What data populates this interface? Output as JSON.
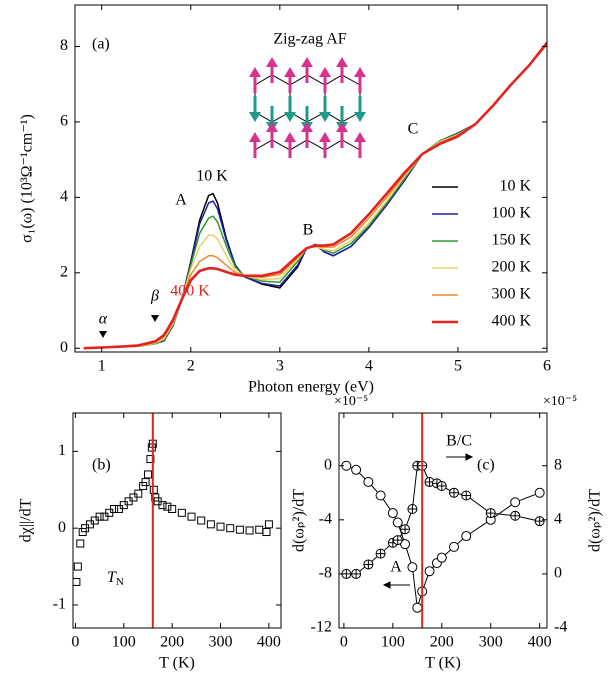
{
  "chart_data": [
    {
      "type": "line",
      "panel_label": "(a)",
      "xlabel": "Photon energy (eV)",
      "ylabel": "σ₁(ω) (10³Ω⁻¹cm⁻¹)",
      "x": [
        0.8,
        1.0,
        1.2,
        1.4,
        1.6,
        1.7,
        1.8,
        1.9,
        2.0,
        2.1,
        2.2,
        2.25,
        2.3,
        2.4,
        2.5,
        2.6,
        2.8,
        3.0,
        3.2,
        3.3,
        3.4,
        3.5,
        3.6,
        3.8,
        4.0,
        4.2,
        4.4,
        4.6,
        4.8,
        5.0,
        5.2,
        5.4,
        5.6,
        5.8,
        6.0
      ],
      "series": [
        {
          "name": "10 K",
          "color": "#000000",
          "values": [
            0,
            0.02,
            0.04,
            0.05,
            0.12,
            0.2,
            0.6,
            1.3,
            2.3,
            3.4,
            4.05,
            4.1,
            3.85,
            2.9,
            2.2,
            1.9,
            1.7,
            1.6,
            2.15,
            2.65,
            2.75,
            2.55,
            2.45,
            2.7,
            3.2,
            3.8,
            4.45,
            5.15,
            5.5,
            5.7,
            5.95,
            6.45,
            7.0,
            7.5,
            8.05
          ]
        },
        {
          "name": "100 K",
          "color": "#1f1fa8",
          "values": [
            0,
            0.02,
            0.04,
            0.05,
            0.12,
            0.2,
            0.6,
            1.3,
            2.25,
            3.3,
            3.85,
            3.9,
            3.7,
            2.85,
            2.2,
            1.9,
            1.72,
            1.65,
            2.2,
            2.65,
            2.75,
            2.55,
            2.45,
            2.7,
            3.2,
            3.8,
            4.45,
            5.15,
            5.5,
            5.7,
            5.95,
            6.45,
            7.0,
            7.5,
            8.05
          ]
        },
        {
          "name": "150 K",
          "color": "#2e9a2e",
          "values": [
            0,
            0.02,
            0.04,
            0.05,
            0.12,
            0.22,
            0.62,
            1.3,
            2.2,
            3.05,
            3.45,
            3.5,
            3.35,
            2.7,
            2.15,
            1.92,
            1.78,
            1.75,
            2.3,
            2.65,
            2.72,
            2.6,
            2.52,
            2.78,
            3.25,
            3.85,
            4.5,
            5.15,
            5.5,
            5.68,
            5.95,
            6.45,
            7.0,
            7.5,
            8.05
          ]
        },
        {
          "name": "200 K",
          "color": "#e6cf6e",
          "values": [
            0,
            0.02,
            0.04,
            0.05,
            0.13,
            0.25,
            0.65,
            1.3,
            2.1,
            2.7,
            3.0,
            3.0,
            2.9,
            2.45,
            2.05,
            1.92,
            1.82,
            1.85,
            2.35,
            2.65,
            2.7,
            2.62,
            2.58,
            2.85,
            3.32,
            3.9,
            4.55,
            5.15,
            5.48,
            5.66,
            5.95,
            6.45,
            7.0,
            7.5,
            8.05
          ]
        },
        {
          "name": "300 K",
          "color": "#f0882a",
          "values": [
            0,
            0.02,
            0.04,
            0.06,
            0.15,
            0.3,
            0.7,
            1.3,
            1.95,
            2.3,
            2.45,
            2.45,
            2.4,
            2.2,
            2.0,
            1.92,
            1.88,
            1.95,
            2.4,
            2.65,
            2.7,
            2.68,
            2.68,
            2.95,
            3.45,
            4.0,
            4.6,
            5.15,
            5.45,
            5.64,
            5.95,
            6.45,
            7.0,
            7.5,
            8.05
          ]
        },
        {
          "name": "400 K",
          "color": "#e3231e",
          "values": [
            0,
            0.02,
            0.04,
            0.07,
            0.18,
            0.35,
            0.75,
            1.3,
            1.8,
            2.05,
            2.12,
            2.12,
            2.1,
            2.02,
            1.95,
            1.92,
            1.92,
            2.02,
            2.45,
            2.65,
            2.72,
            2.72,
            2.75,
            3.05,
            3.55,
            4.1,
            4.65,
            5.15,
            5.42,
            5.62,
            5.95,
            6.45,
            7.0,
            7.5,
            8.1
          ]
        }
      ],
      "xlim": [
        0.7,
        6
      ],
      "xticks": [
        1,
        2,
        3,
        4,
        5,
        6
      ],
      "ylim": [
        -0.1,
        9.1
      ],
      "yticks": [
        0,
        2,
        4,
        6,
        8
      ],
      "annotations": [
        "Zig-zag AF",
        "10 K",
        "A",
        "B",
        "C",
        "400 K",
        "α",
        "β"
      ]
    },
    {
      "type": "scatter",
      "panel_label": "(b)",
      "xlabel": "T (K)",
      "ylabel": "dχ||/dT",
      "x": [
        2,
        5,
        10,
        15,
        20,
        30,
        40,
        50,
        60,
        70,
        80,
        90,
        100,
        110,
        120,
        130,
        140,
        145,
        150,
        155,
        158,
        160,
        162,
        165,
        170,
        180,
        190,
        200,
        220,
        240,
        260,
        280,
        300,
        320,
        340,
        360,
        380,
        395,
        400
      ],
      "values": [
        -0.7,
        -0.5,
        -0.2,
        -0.05,
        0.0,
        0.05,
        0.1,
        0.15,
        0.15,
        0.2,
        0.25,
        0.25,
        0.3,
        0.35,
        0.4,
        0.45,
        0.55,
        0.6,
        0.7,
        0.9,
        1.05,
        1.1,
        0.5,
        0.4,
        0.35,
        0.3,
        0.28,
        0.25,
        0.2,
        0.15,
        0.1,
        0.05,
        0.02,
        0.0,
        -0.02,
        -0.03,
        -0.02,
        -0.05,
        0.05
      ],
      "color": "#000000",
      "xlim": [
        -5,
        425
      ],
      "xticks": [
        0,
        100,
        200,
        300,
        400
      ],
      "ylim": [
        -1.3,
        1.5
      ],
      "yticks": [
        -1,
        0,
        1
      ],
      "tn_line": 160,
      "tn_color": "#e3231e",
      "tn_label": {
        "text": "T",
        "sub": "N"
      }
    },
    {
      "type": "scatter",
      "panel_label": "(c)",
      "xlabel": "T (K)",
      "ylabel": "d(ωₚ²)/dT",
      "y2label": "d(ωₚ²)/dT",
      "scale_labels": [
        "×10⁻⁵",
        "×10⁻⁵"
      ],
      "x": [
        5,
        25,
        50,
        75,
        100,
        110,
        125,
        140,
        150,
        160,
        175,
        190,
        200,
        225,
        250,
        300,
        350,
        400
      ],
      "series": [
        {
          "name": "A",
          "color": "#000000",
          "values": [
            0,
            -0.3,
            -1.2,
            -2.2,
            -3.5,
            -4.2,
            -5.8,
            -7.5,
            -10.5,
            -9.3,
            -7.8,
            -7.2,
            -6.8,
            -6.0,
            -5.2,
            -4.0,
            -2.7,
            -2.0
          ]
        },
        {
          "name": "B/C",
          "color": "#000000",
          "axis": "y2",
          "values": [
            0,
            0,
            0.7,
            1.5,
            2.3,
            2.5,
            3.3,
            4.8,
            8.0,
            8.0,
            6.8,
            6.7,
            6.5,
            6.0,
            5.8,
            4.5,
            4.3,
            3.9
          ]
        }
      ],
      "xlim": [
        -10,
        415
      ],
      "xticks": [
        0,
        100,
        200,
        300,
        400
      ],
      "ylim": [
        -12,
        3.9
      ],
      "yticks": [
        -12,
        -8,
        -4,
        0
      ],
      "y2lim": [
        -4,
        11.9
      ],
      "y2ticks": [
        -4,
        0,
        4,
        8
      ],
      "tn_line": 160,
      "tn_color": "#e3231e"
    }
  ]
}
